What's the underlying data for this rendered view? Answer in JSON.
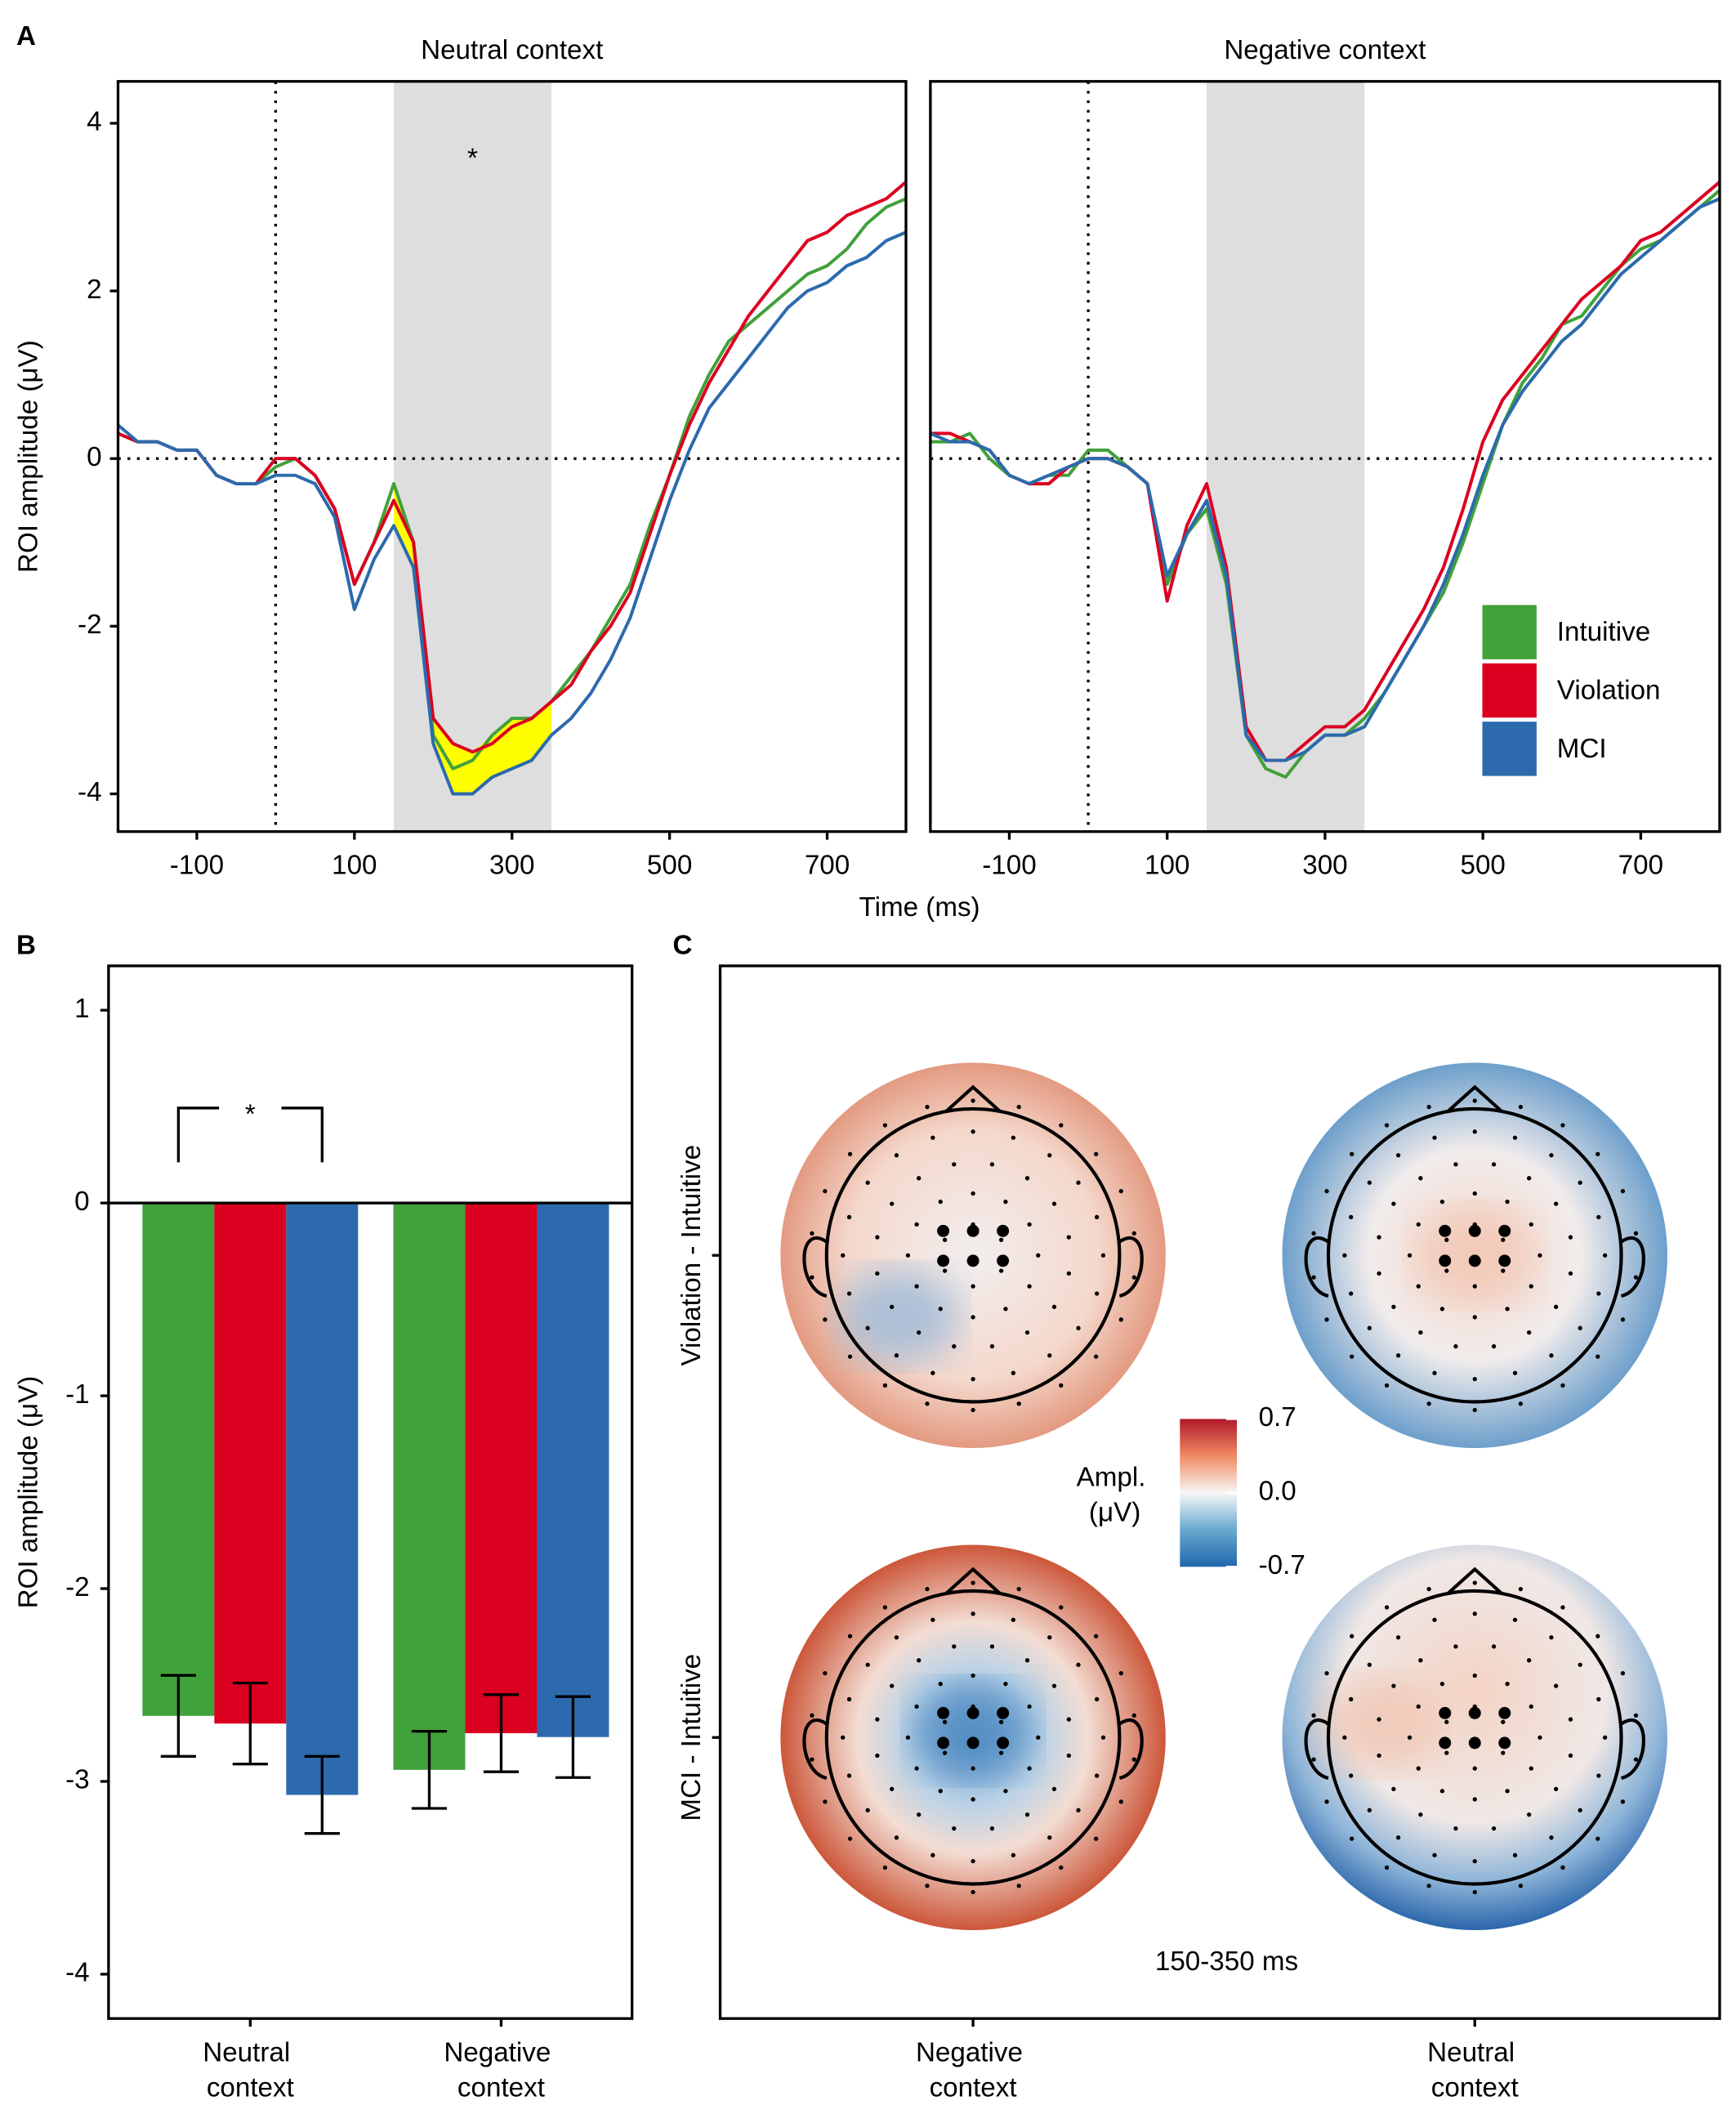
{
  "chart_data": [
    {
      "type": "line",
      "panel": "A",
      "title": "Neutral context",
      "xlabel": "Time (ms)",
      "ylabel": "ROI amplitude (μV)",
      "x": [
        -200,
        -175,
        -150,
        -125,
        -100,
        -75,
        -50,
        -25,
        0,
        25,
        50,
        75,
        100,
        125,
        150,
        175,
        200,
        225,
        250,
        275,
        300,
        325,
        350,
        375,
        400,
        425,
        450,
        475,
        500,
        525,
        550,
        575,
        600,
        625,
        650,
        675,
        700,
        725,
        750,
        775,
        800
      ],
      "series": [
        {
          "name": "Intuitive",
          "color": "#41a13a",
          "values": [
            0.3,
            0.2,
            0.2,
            0.1,
            0.1,
            -0.2,
            -0.3,
            -0.3,
            -0.1,
            0.0,
            -0.2,
            -0.6,
            -1.5,
            -1.0,
            -0.3,
            -1.0,
            -3.3,
            -3.7,
            -3.6,
            -3.3,
            -3.1,
            -3.1,
            -2.9,
            -2.6,
            -2.3,
            -1.9,
            -1.5,
            -0.8,
            -0.2,
            0.5,
            1.0,
            1.4,
            1.6,
            1.8,
            2.0,
            2.2,
            2.3,
            2.5,
            2.8,
            3.0,
            3.1
          ]
        },
        {
          "name": "Violation",
          "color": "#dc0020",
          "values": [
            0.3,
            0.2,
            0.2,
            0.1,
            0.1,
            -0.2,
            -0.3,
            -0.3,
            0.0,
            0.0,
            -0.2,
            -0.6,
            -1.5,
            -1.0,
            -0.5,
            -1.0,
            -3.1,
            -3.4,
            -3.5,
            -3.4,
            -3.2,
            -3.1,
            -2.9,
            -2.7,
            -2.3,
            -2.0,
            -1.6,
            -0.9,
            -0.2,
            0.4,
            0.9,
            1.3,
            1.7,
            2.0,
            2.3,
            2.6,
            2.7,
            2.9,
            3.0,
            3.1,
            3.3
          ]
        },
        {
          "name": "MCI",
          "color": "#2c6aad",
          "values": [
            0.4,
            0.2,
            0.2,
            0.1,
            0.1,
            -0.2,
            -0.3,
            -0.3,
            -0.2,
            -0.2,
            -0.3,
            -0.7,
            -1.8,
            -1.2,
            -0.8,
            -1.3,
            -3.4,
            -4.0,
            -4.0,
            -3.8,
            -3.7,
            -3.6,
            -3.3,
            -3.1,
            -2.8,
            -2.4,
            -1.9,
            -1.2,
            -0.5,
            0.1,
            0.6,
            0.9,
            1.2,
            1.5,
            1.8,
            2.0,
            2.1,
            2.3,
            2.4,
            2.6,
            2.7
          ]
        }
      ],
      "xlim": [
        -200,
        800
      ],
      "xticks": [
        -100,
        100,
        300,
        500,
        700
      ],
      "ylim": [
        -4.45,
        4.5
      ],
      "yticks": [
        -4,
        -2,
        0,
        2,
        4
      ],
      "shade": [
        150,
        350
      ],
      "highlight": true,
      "highlight_color": "#ffff00",
      "annotation": "*",
      "vline": 0,
      "hline": 0
    },
    {
      "type": "line",
      "title": "Negative context",
      "x": [
        -200,
        -175,
        -150,
        -125,
        -100,
        -75,
        -50,
        -25,
        0,
        25,
        50,
        75,
        100,
        125,
        150,
        175,
        200,
        225,
        250,
        275,
        300,
        325,
        350,
        375,
        400,
        425,
        450,
        475,
        500,
        525,
        550,
        575,
        600,
        625,
        650,
        675,
        700,
        725,
        750,
        775,
        800
      ],
      "series": [
        {
          "name": "Intuitive",
          "color": "#41a13a",
          "values": [
            0.2,
            0.2,
            0.3,
            0.0,
            -0.2,
            -0.3,
            -0.2,
            -0.2,
            0.1,
            0.1,
            -0.1,
            -0.3,
            -1.5,
            -0.9,
            -0.6,
            -1.5,
            -3.3,
            -3.7,
            -3.8,
            -3.5,
            -3.3,
            -3.3,
            -3.1,
            -2.8,
            -2.4,
            -2.0,
            -1.6,
            -1.0,
            -0.3,
            0.4,
            0.9,
            1.2,
            1.6,
            1.7,
            2.0,
            2.3,
            2.5,
            2.6,
            2.8,
            3.0,
            3.2
          ]
        },
        {
          "name": "Violation",
          "color": "#dc0020",
          "values": [
            0.3,
            0.3,
            0.2,
            0.1,
            -0.2,
            -0.3,
            -0.3,
            -0.1,
            0.0,
            0.0,
            -0.1,
            -0.3,
            -1.7,
            -0.8,
            -0.3,
            -1.3,
            -3.2,
            -3.6,
            -3.6,
            -3.4,
            -3.2,
            -3.2,
            -3.0,
            -2.6,
            -2.2,
            -1.8,
            -1.3,
            -0.6,
            0.2,
            0.7,
            1.0,
            1.3,
            1.6,
            1.9,
            2.1,
            2.3,
            2.6,
            2.7,
            2.9,
            3.1,
            3.3
          ]
        },
        {
          "name": "MCI",
          "color": "#2c6aad",
          "values": [
            0.3,
            0.2,
            0.2,
            0.1,
            -0.2,
            -0.3,
            -0.2,
            -0.1,
            0.0,
            0.0,
            -0.1,
            -0.3,
            -1.4,
            -0.9,
            -0.5,
            -1.4,
            -3.3,
            -3.6,
            -3.6,
            -3.5,
            -3.3,
            -3.3,
            -3.2,
            -2.8,
            -2.4,
            -2.0,
            -1.5,
            -0.9,
            -0.2,
            0.4,
            0.8,
            1.1,
            1.4,
            1.6,
            1.9,
            2.2,
            2.4,
            2.6,
            2.8,
            3.0,
            3.1
          ]
        }
      ],
      "xlim": [
        -200,
        800
      ],
      "xticks": [
        -100,
        100,
        300,
        500,
        700
      ],
      "ylim": [
        -4.45,
        4.5
      ],
      "shade": [
        150,
        350
      ],
      "vline": 0,
      "hline": 0,
      "legend": "bottom-right"
    },
    {
      "type": "bar",
      "panel": "B",
      "ylabel": "ROI amplitude (μV)",
      "categories": [
        "Neutral context",
        "Negative context"
      ],
      "series": [
        {
          "name": "Intuitive",
          "color": "#41a13a",
          "values": [
            -2.66,
            -2.94
          ],
          "errors": [
            0.21,
            0.2
          ]
        },
        {
          "name": "Violation",
          "color": "#dc0020",
          "values": [
            -2.7,
            -2.75
          ],
          "errors": [
            0.21,
            0.2
          ]
        },
        {
          "name": "MCI",
          "color": "#2c6aad",
          "values": [
            -3.07,
            -2.77
          ],
          "errors": [
            0.2,
            0.21
          ]
        }
      ],
      "ylim": [
        -4.23,
        1.23
      ],
      "yticks": [
        -4,
        -3,
        -2,
        -1,
        0,
        1
      ],
      "significance": "*"
    },
    {
      "type": "topomap",
      "panel": "C",
      "rows": [
        "Violation - Intuitive",
        "MCI - Intuitive"
      ],
      "columns": [
        "Negative context",
        "Neutral context"
      ],
      "annotation": "150-350 ms",
      "colorbar": {
        "title": "Ampl. (μV)",
        "lim": [
          -0.7,
          0.7
        ],
        "ticks": [
          0.7,
          {
            "value": 0,
            "label": "0.0"
          },
          -0.7
        ]
      }
    }
  ]
}
